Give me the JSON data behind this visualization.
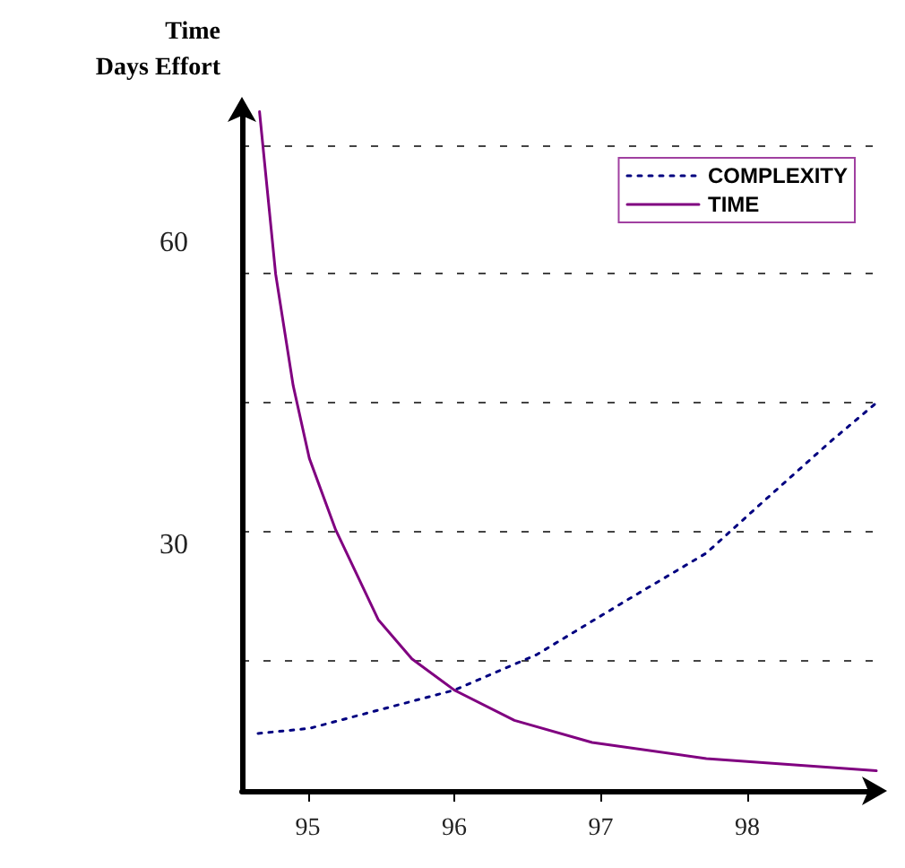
{
  "chart_data": {
    "type": "line",
    "ylabel": "Time\nDays Effort",
    "xlim": [
      94.55,
      98.88
    ],
    "xticks": [
      95,
      96,
      97,
      98
    ],
    "ylim": [
      5.6,
      73.4
    ],
    "yticks": [
      {
        "value": 18.6,
        "label": null
      },
      30,
      {
        "value": 31.3,
        "label": null
      },
      {
        "value": 44.1,
        "label": null
      },
      {
        "value": 56.9,
        "label": null
      },
      60,
      {
        "value": 69.6,
        "label": null
      }
    ],
    "grid": "y",
    "legend": "top right",
    "marker": "none",
    "series": [
      {
        "name": "COMPLEXITY",
        "color": "#000080",
        "line_style": "dotted",
        "x": [
          94.66,
          95.01,
          95.4,
          96.0,
          96.56,
          97.14,
          97.72,
          98.1,
          98.57,
          98.88
        ],
        "values": [
          11.3,
          11.8,
          13.3,
          15.6,
          19.1,
          24.2,
          29.2,
          34.2,
          40.3,
          44.1
        ]
      },
      {
        "name": "TIME",
        "color": "#800080",
        "line_style": "solid",
        "x": [
          94.67,
          94.78,
          94.9,
          95.01,
          95.19,
          95.48,
          95.71,
          96.0,
          96.41,
          96.94,
          97.72,
          98.88
        ],
        "values": [
          73,
          56.9,
          45.8,
          38.6,
          31.5,
          22.6,
          18.7,
          15.6,
          12.6,
          10.4,
          8.8,
          7.6
        ]
      }
    ]
  }
}
